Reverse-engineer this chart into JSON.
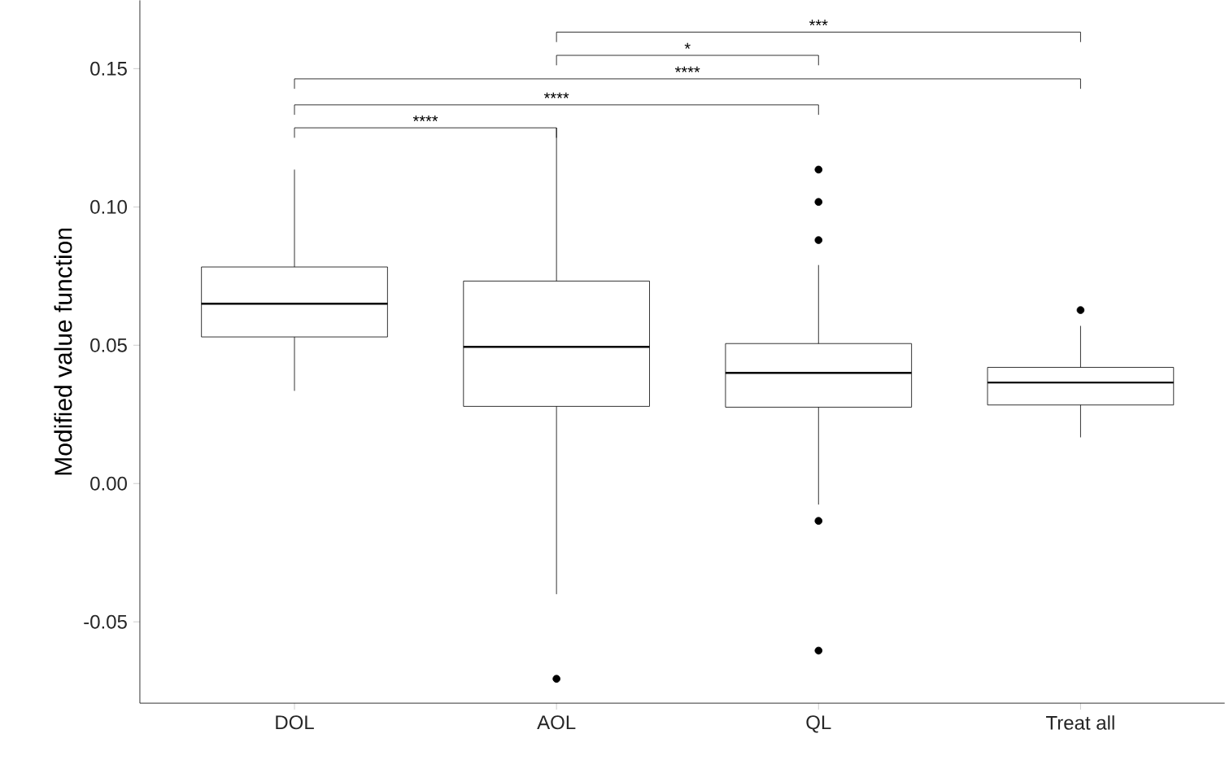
{
  "chart_data": {
    "type": "box",
    "ylabel": "Modified value function",
    "categories": [
      "DOL",
      "AOL",
      "QL",
      "Treat all"
    ],
    "boxes": [
      {
        "low": 0.0335,
        "q1": 0.053,
        "median": 0.065,
        "q3": 0.0783,
        "high": 0.1135
      },
      {
        "low": -0.04,
        "q1": 0.0279,
        "median": 0.0494,
        "q3": 0.0732,
        "high": 0.1286,
        "outliers": [
          -0.0706
        ]
      },
      {
        "low": -0.0076,
        "q1": 0.0276,
        "median": 0.04,
        "q3": 0.0506,
        "high": 0.079,
        "outliers": [
          0.1135,
          0.1018,
          0.088,
          -0.0135,
          -0.0604
        ]
      },
      {
        "low": 0.0167,
        "q1": 0.0284,
        "median": 0.0365,
        "q3": 0.042,
        "high": 0.057,
        "outliers": [
          0.0627
        ]
      }
    ],
    "ylim": [
      -0.0794,
      0.1747
    ],
    "yticks": [
      {
        "value": -0.05,
        "label": "-0.05"
      },
      {
        "value": 0,
        "label": "0.00"
      },
      {
        "value": 0.05,
        "label": "0.05"
      },
      {
        "value": 0.1,
        "label": "0.10"
      },
      {
        "value": 0.15,
        "label": "0.15"
      }
    ],
    "annotations": [
      "****",
      "****",
      "****",
      "*",
      "***"
    ],
    "grid": false,
    "marker": "circle"
  }
}
